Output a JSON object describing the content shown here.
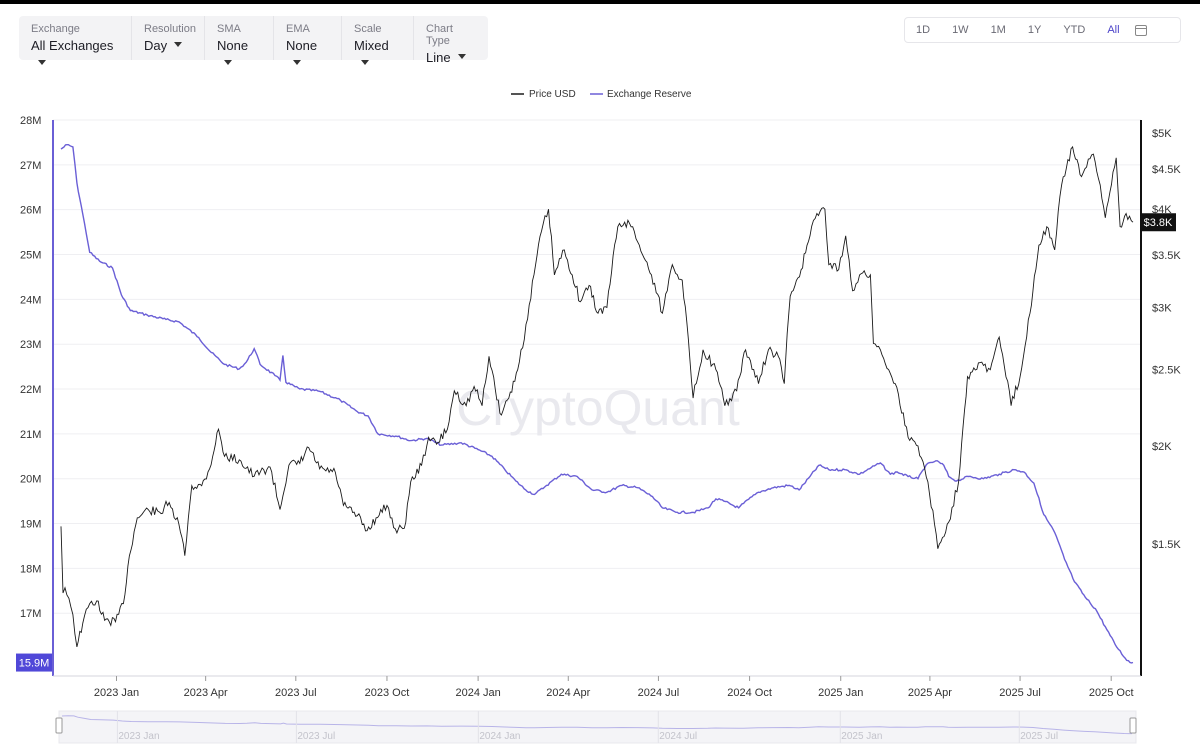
{
  "controls": [
    {
      "label": "Exchange",
      "value": "All Exchanges"
    },
    {
      "label": "Resolution",
      "value": "Day"
    },
    {
      "label": "SMA",
      "value": "None"
    },
    {
      "label": "EMA",
      "value": "None"
    },
    {
      "label": "Scale",
      "value": "Mixed"
    },
    {
      "label": "Chart Type",
      "value": "Line"
    }
  ],
  "ranges": [
    "1D",
    "1W",
    "1M",
    "1Y",
    "YTD",
    "All"
  ],
  "active_range": "All",
  "watermark": "CryptoQuant",
  "colors": {
    "price": "#1a1a1a",
    "reserve": "#6a5fd6",
    "badge_left": "#5048d8",
    "badge_right": "#111111"
  },
  "chart_data": {
    "type": "line",
    "legend": [
      "Price USD",
      "Exchange Reserve"
    ],
    "legend_position": "top-center",
    "x_ticks": [
      "2023 Jan",
      "2023 Apr",
      "2023 Jul",
      "2023 Oct",
      "2024 Jan",
      "2024 Apr",
      "2024 Jul",
      "2024 Oct",
      "2025 Jan",
      "2025 Apr",
      "2025 Jul",
      "2025 Oct"
    ],
    "x_range": [
      "2022-11-06",
      "2025-10-23"
    ],
    "left_axis": {
      "ticks": [
        "28M",
        "27M",
        "26M",
        "25M",
        "24M",
        "23M",
        "22M",
        "21M",
        "20M",
        "19M",
        "18M",
        "17M"
      ],
      "range": [
        15.6,
        28
      ],
      "unit": "M ETH"
    },
    "right_axis": {
      "ticks": [
        "$5K",
        "$4.5K",
        "$4K",
        "$3.5K",
        "$3K",
        "$2.5K",
        "$2K",
        "$1.5K"
      ],
      "scale": "log",
      "range": [
        1100,
        5000
      ]
    },
    "current_reserve_label": "15.9M",
    "current_price_label": "$3.8K",
    "grid": true,
    "series": [
      {
        "name": "Exchange Reserve",
        "axis": "left",
        "points": [
          [
            "2022-11-06",
            27.35
          ],
          [
            "2022-11-12",
            27.45
          ],
          [
            "2022-11-18",
            27.4
          ],
          [
            "2022-11-22",
            26.6
          ],
          [
            "2022-11-28",
            25.9
          ],
          [
            "2022-12-05",
            25.05
          ],
          [
            "2022-12-15",
            24.85
          ],
          [
            "2022-12-28",
            24.7
          ],
          [
            "2023-01-06",
            24.1
          ],
          [
            "2023-01-15",
            23.75
          ],
          [
            "2023-02-01",
            23.65
          ],
          [
            "2023-02-20",
            23.55
          ],
          [
            "2023-03-05",
            23.5
          ],
          [
            "2023-03-25",
            23.15
          ],
          [
            "2023-04-05",
            22.85
          ],
          [
            "2023-04-20",
            22.55
          ],
          [
            "2023-05-05",
            22.45
          ],
          [
            "2023-05-12",
            22.6
          ],
          [
            "2023-05-20",
            22.9
          ],
          [
            "2023-05-26",
            22.55
          ],
          [
            "2023-06-10",
            22.3
          ],
          [
            "2023-06-15",
            22.2
          ],
          [
            "2023-06-18",
            22.75
          ],
          [
            "2023-06-21",
            22.15
          ],
          [
            "2023-07-05",
            22.0
          ],
          [
            "2023-07-25",
            21.95
          ],
          [
            "2023-08-15",
            21.75
          ],
          [
            "2023-09-01",
            21.5
          ],
          [
            "2023-09-12",
            21.4
          ],
          [
            "2023-09-22",
            21.0
          ],
          [
            "2023-10-10",
            20.95
          ],
          [
            "2023-10-25",
            20.85
          ],
          [
            "2023-11-10",
            20.9
          ],
          [
            "2023-11-25",
            20.75
          ],
          [
            "2023-12-15",
            20.8
          ],
          [
            "2024-01-01",
            20.65
          ],
          [
            "2024-01-15",
            20.5
          ],
          [
            "2024-01-28",
            20.2
          ],
          [
            "2024-02-08",
            19.95
          ],
          [
            "2024-02-18",
            19.75
          ],
          [
            "2024-02-27",
            19.65
          ],
          [
            "2024-03-10",
            19.85
          ],
          [
            "2024-03-25",
            20.1
          ],
          [
            "2024-04-10",
            20.05
          ],
          [
            "2024-04-25",
            19.75
          ],
          [
            "2024-05-10",
            19.7
          ],
          [
            "2024-05-25",
            19.85
          ],
          [
            "2024-06-10",
            19.8
          ],
          [
            "2024-06-25",
            19.6
          ],
          [
            "2024-07-05",
            19.35
          ],
          [
            "2024-07-20",
            19.25
          ],
          [
            "2024-08-05",
            19.25
          ],
          [
            "2024-08-20",
            19.35
          ],
          [
            "2024-08-28",
            19.55
          ],
          [
            "2024-09-05",
            19.5
          ],
          [
            "2024-09-20",
            19.35
          ],
          [
            "2024-09-25",
            19.45
          ],
          [
            "2024-10-10",
            19.7
          ],
          [
            "2024-10-25",
            19.8
          ],
          [
            "2024-11-10",
            19.85
          ],
          [
            "2024-11-20",
            19.75
          ],
          [
            "2024-12-01",
            20.05
          ],
          [
            "2024-12-10",
            20.3
          ],
          [
            "2024-12-20",
            20.2
          ],
          [
            "2025-01-05",
            20.2
          ],
          [
            "2025-01-20",
            20.1
          ],
          [
            "2025-02-01",
            20.25
          ],
          [
            "2025-02-10",
            20.35
          ],
          [
            "2025-02-20",
            20.1
          ],
          [
            "2025-02-27",
            20.15
          ],
          [
            "2025-03-10",
            20.05
          ],
          [
            "2025-03-20",
            20.0
          ],
          [
            "2025-03-28",
            20.3
          ],
          [
            "2025-04-07",
            20.4
          ],
          [
            "2025-04-15",
            20.3
          ],
          [
            "2025-04-20",
            20.05
          ],
          [
            "2025-04-28",
            19.95
          ],
          [
            "2025-05-10",
            20.05
          ],
          [
            "2025-05-25",
            20.0
          ],
          [
            "2025-06-10",
            20.1
          ],
          [
            "2025-06-25",
            20.2
          ],
          [
            "2025-07-05",
            20.15
          ],
          [
            "2025-07-15",
            19.9
          ],
          [
            "2025-07-25",
            19.2
          ],
          [
            "2025-08-05",
            18.8
          ],
          [
            "2025-08-15",
            18.2
          ],
          [
            "2025-08-25",
            17.7
          ],
          [
            "2025-09-05",
            17.35
          ],
          [
            "2025-09-15",
            17.1
          ],
          [
            "2025-09-25",
            16.7
          ],
          [
            "2025-10-05",
            16.3
          ],
          [
            "2025-10-15",
            16.0
          ],
          [
            "2025-10-20",
            15.9
          ],
          [
            "2025-10-23",
            15.9
          ]
        ]
      },
      {
        "name": "Price USD",
        "axis": "right",
        "points": [
          [
            "2022-11-06",
            1580
          ],
          [
            "2022-11-08",
            1300
          ],
          [
            "2022-11-10",
            1320
          ],
          [
            "2022-11-14",
            1280
          ],
          [
            "2022-11-18",
            1220
          ],
          [
            "2022-11-22",
            1110
          ],
          [
            "2022-11-28",
            1190
          ],
          [
            "2022-12-05",
            1260
          ],
          [
            "2022-12-12",
            1270
          ],
          [
            "2022-12-20",
            1200
          ],
          [
            "2022-12-31",
            1195
          ],
          [
            "2023-01-08",
            1260
          ],
          [
            "2023-01-14",
            1450
          ],
          [
            "2023-01-22",
            1620
          ],
          [
            "2023-02-02",
            1660
          ],
          [
            "2023-02-15",
            1640
          ],
          [
            "2023-02-20",
            1700
          ],
          [
            "2023-03-05",
            1590
          ],
          [
            "2023-03-11",
            1450
          ],
          [
            "2023-03-18",
            1780
          ],
          [
            "2023-03-28",
            1780
          ],
          [
            "2023-04-05",
            1870
          ],
          [
            "2023-04-14",
            2100
          ],
          [
            "2023-04-20",
            1940
          ],
          [
            "2023-05-05",
            1920
          ],
          [
            "2023-05-20",
            1830
          ],
          [
            "2023-06-05",
            1880
          ],
          [
            "2023-06-15",
            1660
          ],
          [
            "2023-06-24",
            1890
          ],
          [
            "2023-07-05",
            1900
          ],
          [
            "2023-07-14",
            1990
          ],
          [
            "2023-07-25",
            1870
          ],
          [
            "2023-08-10",
            1850
          ],
          [
            "2023-08-18",
            1680
          ],
          [
            "2023-09-01",
            1630
          ],
          [
            "2023-09-11",
            1560
          ],
          [
            "2023-09-20",
            1620
          ],
          [
            "2023-10-01",
            1680
          ],
          [
            "2023-10-11",
            1550
          ],
          [
            "2023-10-20",
            1600
          ],
          [
            "2023-10-25",
            1800
          ],
          [
            "2023-11-05",
            1890
          ],
          [
            "2023-11-12",
            2050
          ],
          [
            "2023-11-20",
            2010
          ],
          [
            "2023-12-01",
            2100
          ],
          [
            "2023-12-08",
            2350
          ],
          [
            "2023-12-20",
            2250
          ],
          [
            "2023-12-28",
            2380
          ],
          [
            "2024-01-05",
            2250
          ],
          [
            "2024-01-12",
            2600
          ],
          [
            "2024-01-23",
            2200
          ],
          [
            "2024-02-01",
            2300
          ],
          [
            "2024-02-10",
            2500
          ],
          [
            "2024-02-20",
            2900
          ],
          [
            "2024-02-28",
            3400
          ],
          [
            "2024-03-05",
            3750
          ],
          [
            "2024-03-12",
            4000
          ],
          [
            "2024-03-18",
            3300
          ],
          [
            "2024-03-28",
            3550
          ],
          [
            "2024-04-05",
            3300
          ],
          [
            "2024-04-13",
            3050
          ],
          [
            "2024-04-22",
            3200
          ],
          [
            "2024-05-01",
            2950
          ],
          [
            "2024-05-10",
            3000
          ],
          [
            "2024-05-21",
            3800
          ],
          [
            "2024-05-28",
            3850
          ],
          [
            "2024-06-05",
            3800
          ],
          [
            "2024-06-15",
            3500
          ],
          [
            "2024-06-24",
            3300
          ],
          [
            "2024-07-05",
            2950
          ],
          [
            "2024-07-15",
            3400
          ],
          [
            "2024-07-25",
            3250
          ],
          [
            "2024-08-05",
            2300
          ],
          [
            "2024-08-15",
            2650
          ],
          [
            "2024-08-28",
            2500
          ],
          [
            "2024-09-06",
            2250
          ],
          [
            "2024-09-18",
            2350
          ],
          [
            "2024-09-27",
            2650
          ],
          [
            "2024-10-10",
            2400
          ],
          [
            "2024-10-20",
            2650
          ],
          [
            "2024-10-30",
            2600
          ],
          [
            "2024-11-05",
            2400
          ],
          [
            "2024-11-11",
            3100
          ],
          [
            "2024-11-22",
            3350
          ],
          [
            "2024-12-01",
            3700
          ],
          [
            "2024-12-08",
            3950
          ],
          [
            "2024-12-16",
            4000
          ],
          [
            "2024-12-20",
            3400
          ],
          [
            "2024-12-30",
            3350
          ],
          [
            "2025-01-06",
            3700
          ],
          [
            "2025-01-13",
            3150
          ],
          [
            "2025-01-20",
            3300
          ],
          [
            "2025-01-31",
            3300
          ],
          [
            "2025-02-03",
            2700
          ],
          [
            "2025-02-10",
            2650
          ],
          [
            "2025-02-25",
            2400
          ],
          [
            "2025-03-10",
            2050
          ],
          [
            "2025-03-20",
            2000
          ],
          [
            "2025-03-30",
            1800
          ],
          [
            "2025-04-09",
            1480
          ],
          [
            "2025-04-20",
            1600
          ],
          [
            "2025-04-30",
            1800
          ],
          [
            "2025-05-09",
            2450
          ],
          [
            "2025-05-20",
            2550
          ],
          [
            "2025-06-01",
            2500
          ],
          [
            "2025-06-10",
            2750
          ],
          [
            "2025-06-22",
            2250
          ],
          [
            "2025-07-01",
            2450
          ],
          [
            "2025-07-11",
            2950
          ],
          [
            "2025-07-20",
            3600
          ],
          [
            "2025-07-28",
            3800
          ],
          [
            "2025-08-05",
            3550
          ],
          [
            "2025-08-12",
            4300
          ],
          [
            "2025-08-23",
            4800
          ],
          [
            "2025-09-01",
            4400
          ],
          [
            "2025-09-13",
            4700
          ],
          [
            "2025-09-25",
            3900
          ],
          [
            "2025-10-06",
            4650
          ],
          [
            "2025-10-10",
            3800
          ],
          [
            "2025-10-16",
            3950
          ],
          [
            "2025-10-23",
            3850
          ]
        ]
      }
    ]
  }
}
